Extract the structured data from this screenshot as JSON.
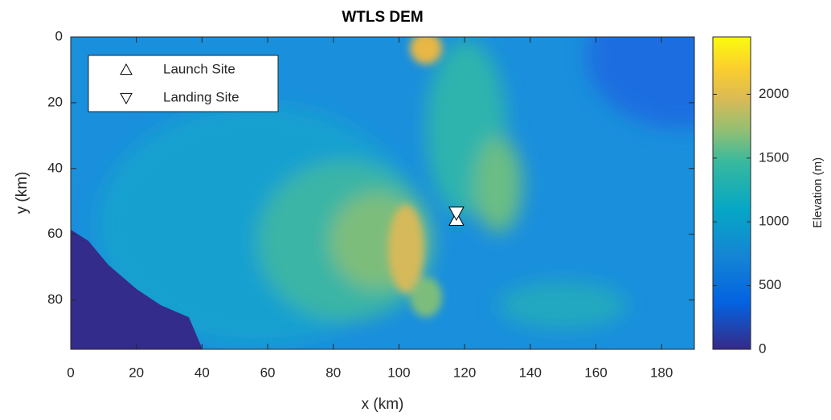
{
  "chart_data": {
    "type": "scatter",
    "title": "WTLS DEM",
    "x_label": "x (km)",
    "y_label": "y (km)",
    "xlim": [
      0,
      190
    ],
    "ylim": [
      0,
      95
    ],
    "y_reversed": true,
    "xticks": [
      0,
      20,
      40,
      60,
      80,
      100,
      120,
      140,
      160,
      180
    ],
    "yticks": [
      0,
      20,
      40,
      60,
      80
    ],
    "legend": "upper left",
    "series": [
      {
        "name": "Launch Site",
        "marker": "triangle-up",
        "color": "#ffffff",
        "x": [
          117.5
        ],
        "values": [
          55.5
        ]
      },
      {
        "name": "Landing Site",
        "marker": "triangle-down",
        "color": "#ffffff",
        "x": [
          117.5
        ],
        "values": [
          53.5
        ]
      }
    ],
    "colorbar": {
      "label": "Elevation (m)",
      "lim": [
        0,
        2450
      ],
      "ticks": [
        0,
        500,
        1000,
        1500,
        2000
      ],
      "colormap": "parula"
    }
  }
}
